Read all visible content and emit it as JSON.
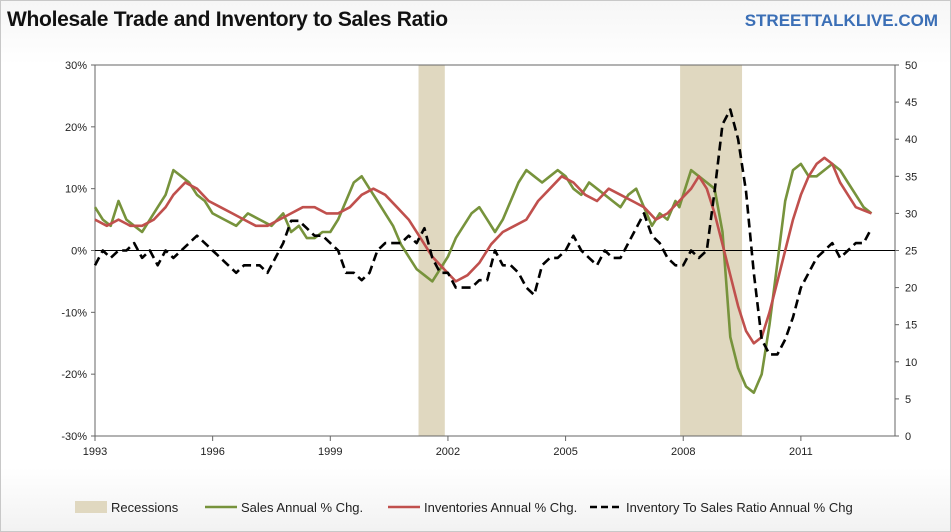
{
  "header": {
    "title": "Wholesale Trade and Inventory to Sales Ratio",
    "brand": "STREETTALKLIVE.COM"
  },
  "chart_data": {
    "type": "line",
    "title": "Wholesale Trade and Inventory to Sales Ratio",
    "xlim": [
      1993,
      2013.4
    ],
    "y_left": {
      "lim": [
        -30,
        30
      ],
      "ticks": [
        30,
        20,
        10,
        0,
        -10,
        -20,
        -30
      ],
      "tick_labels": [
        "30%",
        "20%",
        "10%",
        "0%",
        "-10%",
        "-20%",
        "-30%"
      ]
    },
    "y_right": {
      "lim": [
        0,
        50
      ],
      "ticks": [
        50,
        45,
        40,
        35,
        30,
        25,
        20,
        15,
        10,
        5,
        0
      ],
      "tick_labels": [
        "50",
        "45",
        "40",
        "35",
        "30",
        "25",
        "20",
        "15",
        "10",
        "5",
        "0"
      ]
    },
    "x_ticks": [
      1993,
      1996,
      1999,
      2002,
      2005,
      2008,
      2011
    ],
    "x_tick_labels": [
      "1993",
      "1996",
      "1999",
      "2002",
      "2005",
      "2008",
      "2011"
    ],
    "recessions": [
      [
        2001.25,
        2001.92
      ],
      [
        2007.92,
        2009.5
      ]
    ],
    "legend": [
      "Recessions",
      "Sales Annual % Chg.",
      "Inventories Annual % Chg.",
      "Inventory To Sales Ratio Annual % Chg"
    ],
    "colors": {
      "recession": "#e0d8c0",
      "sales": "#77933c",
      "inventories": "#c0504d",
      "ratio": "#000000",
      "axis": "#666666"
    },
    "series": [
      {
        "name": "Sales Annual % Chg.",
        "axis": "left",
        "x": [
          1993.0,
          1993.2,
          1993.4,
          1993.6,
          1993.8,
          1994.0,
          1994.2,
          1994.4,
          1994.6,
          1994.8,
          1995.0,
          1995.2,
          1995.4,
          1995.6,
          1995.8,
          1996.0,
          1996.3,
          1996.6,
          1996.9,
          1997.2,
          1997.5,
          1997.8,
          1998.0,
          1998.2,
          1998.4,
          1998.6,
          1998.8,
          1999.0,
          1999.2,
          1999.4,
          1999.6,
          1999.8,
          2000.0,
          2000.2,
          2000.4,
          2000.6,
          2000.8,
          2001.0,
          2001.2,
          2001.4,
          2001.6,
          2001.8,
          2002.0,
          2002.2,
          2002.4,
          2002.6,
          2002.8,
          2003.0,
          2003.2,
          2003.4,
          2003.6,
          2003.8,
          2004.0,
          2004.2,
          2004.4,
          2004.6,
          2004.8,
          2005.0,
          2005.2,
          2005.4,
          2005.6,
          2005.8,
          2006.0,
          2006.2,
          2006.4,
          2006.6,
          2006.8,
          2007.0,
          2007.2,
          2007.4,
          2007.6,
          2007.8,
          2007.9,
          2008.0,
          2008.2,
          2008.4,
          2008.6,
          2008.8,
          2009.0,
          2009.2,
          2009.4,
          2009.6,
          2009.8,
          2010.0,
          2010.2,
          2010.4,
          2010.6,
          2010.8,
          2011.0,
          2011.2,
          2011.4,
          2011.6,
          2011.8,
          2012.0,
          2012.2,
          2012.4,
          2012.6,
          2012.8
        ],
        "values": [
          7,
          5,
          4,
          8,
          5,
          4,
          3,
          5,
          7,
          9,
          13,
          12,
          11,
          9,
          8,
          6,
          5,
          4,
          6,
          5,
          4,
          6,
          3,
          4,
          2,
          2,
          3,
          3,
          5,
          8,
          11,
          12,
          10,
          8,
          6,
          4,
          1,
          -1,
          -3,
          -4,
          -5,
          -3,
          -1,
          2,
          4,
          6,
          7,
          5,
          3,
          5,
          8,
          11,
          13,
          12,
          11,
          12,
          13,
          12,
          10,
          9,
          11,
          10,
          9,
          8,
          7,
          9,
          10,
          7,
          4,
          6,
          5,
          8,
          7,
          9,
          13,
          12,
          11,
          10,
          3,
          -14,
          -19,
          -22,
          -23,
          -20,
          -12,
          -2,
          8,
          13,
          14,
          12,
          12,
          13,
          14,
          13,
          11,
          9,
          7,
          6
        ]
      },
      {
        "name": "Inventories Annual % Chg.",
        "axis": "left",
        "x": [
          1993.0,
          1993.3,
          1993.6,
          1993.9,
          1994.2,
          1994.5,
          1994.8,
          1995.0,
          1995.3,
          1995.6,
          1995.9,
          1996.2,
          1996.5,
          1996.8,
          1997.1,
          1997.4,
          1997.7,
          1998.0,
          1998.3,
          1998.6,
          1998.9,
          1999.2,
          1999.5,
          1999.8,
          2000.1,
          2000.4,
          2000.7,
          2001.0,
          2001.3,
          2001.6,
          2001.9,
          2002.2,
          2002.5,
          2002.8,
          2003.1,
          2003.4,
          2003.7,
          2004.0,
          2004.3,
          2004.6,
          2004.9,
          2005.2,
          2005.5,
          2005.8,
          2006.1,
          2006.4,
          2006.7,
          2007.0,
          2007.3,
          2007.6,
          2007.9,
          2008.2,
          2008.4,
          2008.6,
          2008.8,
          2009.0,
          2009.2,
          2009.4,
          2009.6,
          2009.8,
          2010.0,
          2010.2,
          2010.4,
          2010.6,
          2010.8,
          2011.0,
          2011.2,
          2011.4,
          2011.6,
          2011.8,
          2012.0,
          2012.2,
          2012.4,
          2012.8
        ],
        "values": [
          5,
          4,
          5,
          4,
          4,
          5,
          7,
          9,
          11,
          10,
          8,
          7,
          6,
          5,
          4,
          4,
          5,
          6,
          7,
          7,
          6,
          6,
          7,
          9,
          10,
          9,
          7,
          5,
          2,
          -1,
          -3,
          -5,
          -4,
          -2,
          1,
          3,
          4,
          5,
          8,
          10,
          12,
          11,
          9,
          8,
          10,
          9,
          8,
          7,
          5,
          6,
          8,
          10,
          12,
          10,
          6,
          1,
          -4,
          -9,
          -13,
          -15,
          -14,
          -10,
          -5,
          0,
          5,
          9,
          12,
          14,
          15,
          14,
          11,
          9,
          7,
          6
        ]
      },
      {
        "name": "Inventory To Sales Ratio Annual % Chg",
        "axis": "right",
        "x": [
          1993.0,
          1993.2,
          1993.4,
          1993.6,
          1993.8,
          1994.0,
          1994.2,
          1994.4,
          1994.6,
          1994.8,
          1995.0,
          1995.2,
          1995.4,
          1995.6,
          1995.8,
          1996.0,
          1996.2,
          1996.4,
          1996.6,
          1996.8,
          1997.0,
          1997.2,
          1997.4,
          1997.6,
          1997.8,
          1998.0,
          1998.2,
          1998.4,
          1998.6,
          1998.8,
          1999.0,
          1999.2,
          1999.4,
          1999.6,
          1999.8,
          2000.0,
          2000.2,
          2000.4,
          2000.6,
          2000.8,
          2001.0,
          2001.2,
          2001.4,
          2001.6,
          2001.8,
          2002.0,
          2002.2,
          2002.4,
          2002.6,
          2002.8,
          2003.0,
          2003.2,
          2003.4,
          2003.6,
          2003.8,
          2004.0,
          2004.2,
          2004.4,
          2004.6,
          2004.8,
          2005.0,
          2005.2,
          2005.4,
          2005.6,
          2005.8,
          2006.0,
          2006.2,
          2006.4,
          2006.6,
          2006.8,
          2007.0,
          2007.2,
          2007.4,
          2007.6,
          2007.8,
          2008.0,
          2008.2,
          2008.4,
          2008.6,
          2008.8,
          2009.0,
          2009.2,
          2009.4,
          2009.6,
          2009.8,
          2010.0,
          2010.2,
          2010.4,
          2010.6,
          2010.8,
          2011.0,
          2011.2,
          2011.4,
          2011.6,
          2011.8,
          2012.0,
          2012.2,
          2012.4,
          2012.6,
          2012.8
        ],
        "values": [
          23,
          25,
          24,
          25,
          25,
          26,
          24,
          25,
          23,
          25,
          24,
          25,
          26,
          27,
          26,
          25,
          24,
          23,
          22,
          23,
          23,
          23,
          22,
          24,
          26,
          29,
          29,
          28,
          27,
          27,
          26,
          25,
          22,
          22,
          21,
          22,
          25,
          26,
          26,
          26,
          27,
          26,
          28,
          24,
          22,
          22,
          20,
          20,
          20,
          21,
          21,
          25,
          23,
          23,
          22,
          20,
          19,
          23,
          24,
          24,
          25,
          27,
          25,
          24,
          23,
          25,
          24,
          24,
          26,
          28,
          30,
          27,
          26,
          24,
          23,
          23,
          25,
          24,
          25,
          33,
          42,
          44,
          40,
          33,
          22,
          13,
          11,
          11,
          13,
          16,
          20,
          22,
          24,
          25,
          26,
          24,
          25,
          26,
          26,
          28
        ]
      }
    ]
  }
}
